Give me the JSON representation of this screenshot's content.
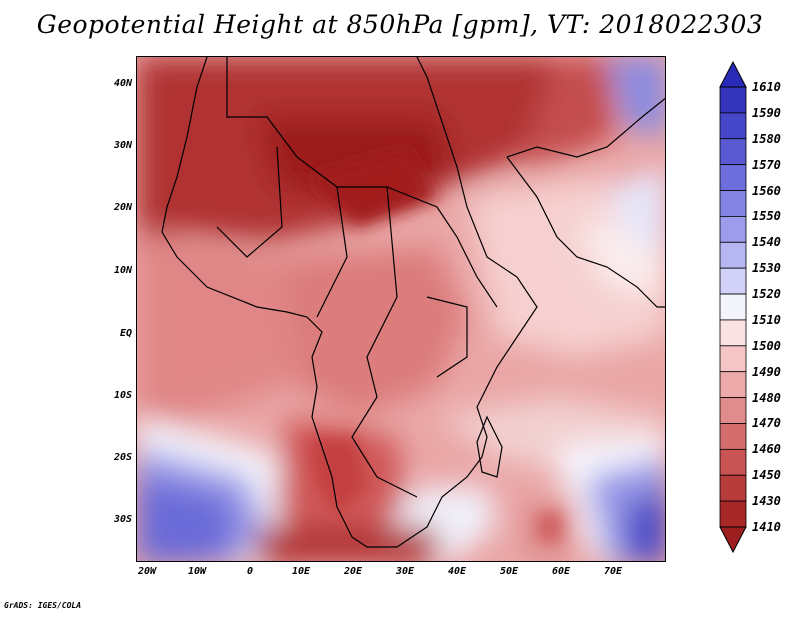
{
  "title": "Geopotential Height at 850hPa [gpm], VT: 2018022303",
  "footer": "GrADS: IGES/COLA",
  "y_axis": {
    "ticks": [
      "40N",
      "30N",
      "20N",
      "10N",
      "EQ",
      "10S",
      "20S",
      "30S"
    ]
  },
  "x_axis": {
    "ticks": [
      "20W",
      "10W",
      "0",
      "10E",
      "20E",
      "30E",
      "40E",
      "50E",
      "60E",
      "70E"
    ]
  },
  "colorbar": {
    "levels": [
      "1610",
      "1590",
      "1580",
      "1570",
      "1560",
      "1550",
      "1540",
      "1530",
      "1520",
      "1510",
      "1500",
      "1490",
      "1480",
      "1470",
      "1460",
      "1450",
      "1430",
      "1410"
    ],
    "colors": [
      "#2a2ab8",
      "#3434bd",
      "#4646c8",
      "#5a5ad2",
      "#6e6edc",
      "#8484e4",
      "#9c9ceb",
      "#b6b6f2",
      "#d2d2f8",
      "#f4f4fc",
      "#fbe2e2",
      "#f6c6c6",
      "#ecaaaa",
      "#e08c8c",
      "#d46e6e",
      "#c85454",
      "#b83c3c",
      "#a82828",
      "#9c1e1e"
    ]
  },
  "colors": {
    "dark_red": "#a82828",
    "red": "#c84848",
    "mid_red": "#dc7878",
    "pink": "#eca8a8",
    "light_pink": "#f6d4d4",
    "white": "#ffffff",
    "light_blue": "#d2d2f8",
    "blue": "#7070d8",
    "dark_blue": "#3c3cbc",
    "border": "#000000"
  }
}
